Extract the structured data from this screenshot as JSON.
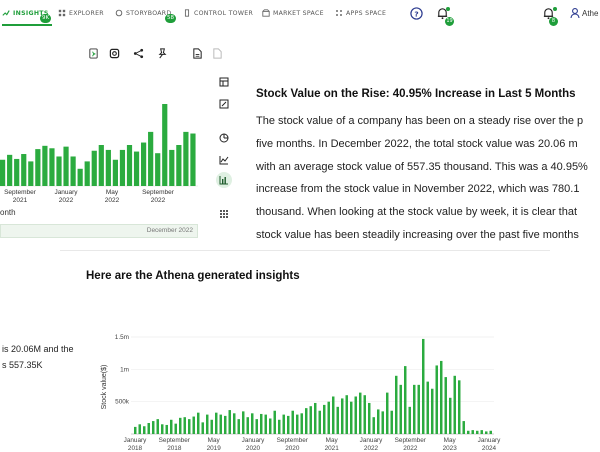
{
  "nav": {
    "items": [
      {
        "label": "INSIGHTS",
        "badge": "9K"
      },
      {
        "label": "EXPLORER",
        "badge": ""
      },
      {
        "label": "STORYBOARD",
        "badge": "58"
      },
      {
        "label": "CONTROL TOWER",
        "badge": ""
      },
      {
        "label": "MARKET SPACE",
        "badge": ""
      },
      {
        "label": "APPS SPACE",
        "badge": ""
      }
    ],
    "notification_badge": "19",
    "bell_badge": "8",
    "user_name": "Athe"
  },
  "colors": {
    "accent": "#1f9e3a",
    "bar": "#2bab3f",
    "text": "#222222"
  },
  "mini_chart": {
    "x_ticks": [
      {
        "label": "September",
        "sub": "2021"
      },
      {
        "label": "January",
        "sub": "2022"
      },
      {
        "label": "May",
        "sub": "2022"
      },
      {
        "label": "September",
        "sub": "2022"
      }
    ],
    "title_fragment": "onth",
    "range_label": "December 2022"
  },
  "story": {
    "title": "Stock Value on the Rise: 40.95% Increase in Last 5 Months",
    "lines": [
      "The stock value of a company has been on a steady rise over the p",
      "five months. In December 2022, the total stock value was 20.06 m",
      "with an average stock value of 557.35 thousand. This was a 40.95%",
      "increase from the stock value in November 2022, which was 780.1",
      "thousand. When looking at the stock value by week, it is clear that",
      "stock value has been steadily increasing over the past five months"
    ]
  },
  "insights": {
    "header": "Here are the Athena generated insights",
    "line1": "is 20.06M and the",
    "line2": "s 557.35K"
  },
  "chart_data": [
    {
      "type": "bar",
      "ylabel": "",
      "values": [
        0.32,
        0.38,
        0.33,
        0.39,
        0.3,
        0.45,
        0.49,
        0.46,
        0.36,
        0.48,
        0.36,
        0.21,
        0.3,
        0.43,
        0.5,
        0.44,
        0.32,
        0.44,
        0.5,
        0.42,
        0.53,
        0.66,
        0.4,
        1.0,
        0.44,
        0.5,
        0.66,
        0.64
      ],
      "ylim": [
        0,
        1
      ]
    },
    {
      "type": "bar",
      "ylabel": "Stock value($)",
      "yticks": [
        {
          "v": 0,
          "label": ""
        },
        {
          "v": 500000,
          "label": "500k"
        },
        {
          "v": 1000000,
          "label": "1m"
        },
        {
          "v": 1500000,
          "label": "1.5m"
        }
      ],
      "ylim": [
        0,
        1500000
      ],
      "xticks": [
        {
          "label": "January",
          "sub": "2018"
        },
        {
          "label": "September",
          "sub": "2018"
        },
        {
          "label": "May",
          "sub": "2019"
        },
        {
          "label": "January",
          "sub": "2020"
        },
        {
          "label": "September",
          "sub": "2020"
        },
        {
          "label": "May",
          "sub": "2021"
        },
        {
          "label": "January",
          "sub": "2022"
        },
        {
          "label": "September",
          "sub": "2022"
        },
        {
          "label": "May",
          "sub": "2023"
        },
        {
          "label": "January",
          "sub": "2024"
        }
      ],
      "values": [
        110000,
        150000,
        120000,
        170000,
        200000,
        230000,
        150000,
        140000,
        220000,
        160000,
        250000,
        260000,
        230000,
        270000,
        330000,
        180000,
        300000,
        220000,
        330000,
        300000,
        280000,
        370000,
        320000,
        230000,
        350000,
        260000,
        320000,
        230000,
        310000,
        300000,
        240000,
        360000,
        220000,
        300000,
        280000,
        360000,
        300000,
        320000,
        400000,
        430000,
        480000,
        360000,
        450000,
        500000,
        580000,
        420000,
        550000,
        600000,
        500000,
        580000,
        640000,
        600000,
        480000,
        260000,
        380000,
        350000,
        640000,
        360000,
        900000,
        760000,
        1050000,
        420000,
        760000,
        760000,
        1470000,
        810000,
        700000,
        1060000,
        1130000,
        880000,
        560000,
        900000,
        830000,
        200000,
        50000,
        60000,
        50000,
        60000,
        40000,
        50000
      ]
    }
  ]
}
